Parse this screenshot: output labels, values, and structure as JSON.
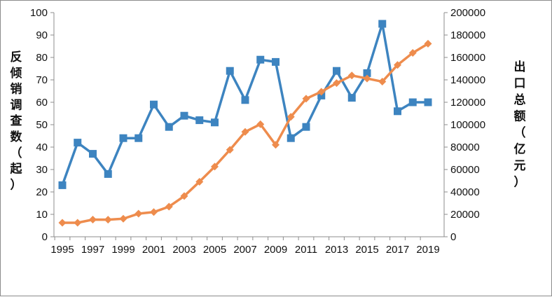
{
  "chart_data": {
    "type": "line",
    "title": "",
    "x": [
      1995,
      1996,
      1997,
      1998,
      1999,
      2000,
      2001,
      2002,
      2003,
      2004,
      2005,
      2006,
      2007,
      2008,
      2009,
      2010,
      2011,
      2012,
      2013,
      2014,
      2015,
      2016,
      2017,
      2018,
      2019
    ],
    "x_tick_labels": [
      "1995",
      "1997",
      "1999",
      "2001",
      "2003",
      "2005",
      "2007",
      "2009",
      "2011",
      "2013",
      "2015",
      "2017",
      "2019"
    ],
    "y_left": {
      "label_chars": [
        "反",
        "倾",
        "销",
        "调",
        "查",
        "数",
        "（",
        "起",
        "）"
      ],
      "lim": [
        0,
        100
      ],
      "ticks": [
        "0",
        "10",
        "20",
        "30",
        "40",
        "50",
        "60",
        "70",
        "80",
        "90",
        "100"
      ]
    },
    "y_right": {
      "label_chars": [
        "出",
        "口",
        "总",
        "额",
        "（",
        "亿",
        "元",
        "）"
      ],
      "lim": [
        0,
        200000
      ],
      "ticks": [
        "0",
        "20000",
        "40000",
        "60000",
        "80000",
        "100000",
        "120000",
        "140000",
        "160000",
        "180000",
        "200000"
      ]
    },
    "series": [
      {
        "axis": "left",
        "marker": "square",
        "color": "#3d84c0",
        "values": [
          23,
          42,
          37,
          28,
          44,
          44,
          59,
          49,
          54,
          52,
          51,
          74,
          61,
          79,
          78,
          44,
          49,
          63,
          74,
          62,
          73,
          95,
          56,
          60,
          60
        ]
      },
      {
        "axis": "right",
        "marker": "diamond",
        "color": "#ee8c4d",
        "values": [
          12500,
          12500,
          15300,
          15200,
          16100,
          20600,
          22000,
          26900,
          36300,
          49100,
          62600,
          77600,
          93600,
          100400,
          82000,
          107000,
          123200,
          129400,
          137100,
          143900,
          141200,
          138400,
          153300,
          164100,
          172300
        ]
      }
    ],
    "grid": false,
    "legend": "none"
  }
}
